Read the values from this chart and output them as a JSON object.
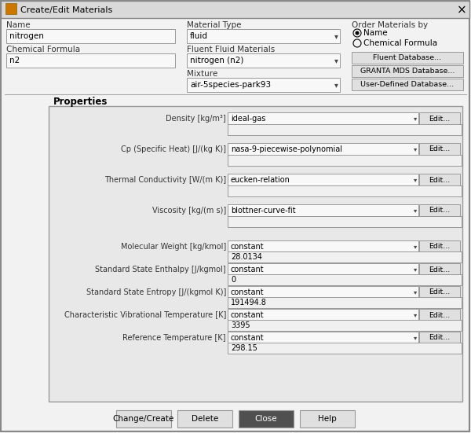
{
  "title": "Create/Edit Materials",
  "bg_color": "#f2f2f2",
  "title_bar_color": "#d9d9d9",
  "field_bg": "#f8f8f8",
  "field_bg2": "#eeeeee",
  "prop_box_bg": "#e8e8e8",
  "btn_bg": "#e0e0e0",
  "dark_btn_bg": "#505050",
  "border_color": "#999999",
  "text_color": "#000000",
  "label_color": "#222222",
  "properties": [
    {
      "label": "Density [kg/m³]",
      "dropdown": "ideal-gas",
      "value_content": ""
    },
    {
      "label": "Cp (Specific Heat) [J/(kg K)]",
      "dropdown": "nasa-9-piecewise-polynomial",
      "value_content": ""
    },
    {
      "label": "Thermal Conductivity [W/(m K)]",
      "dropdown": "eucken-relation",
      "value_content": ""
    },
    {
      "label": "Viscosity [kg/(m s)]",
      "dropdown": "blottner-curve-fit",
      "value_content": ""
    },
    {
      "label": "Molecular Weight [kg/kmol]",
      "dropdown": "constant",
      "value_content": "28.0134"
    },
    {
      "label": "Standard State Enthalpy [J/kgmol]",
      "dropdown": "constant",
      "value_content": "0"
    },
    {
      "label": "Standard State Entropy [J/(kgmol K)]",
      "dropdown": "constant",
      "value_content": "191494.8"
    },
    {
      "label": "Characteristic Vibrational Temperature [K]",
      "dropdown": "constant",
      "value_content": "3395"
    },
    {
      "label": "Reference Temperature [K]",
      "dropdown": "constant",
      "value_content": "298.15"
    }
  ],
  "bottom_buttons": [
    {
      "label": "Change/Create",
      "dark": false
    },
    {
      "label": "Delete",
      "dark": false
    },
    {
      "label": "Close",
      "dark": true
    },
    {
      "label": "Help",
      "dark": false
    }
  ],
  "db_buttons": [
    "Fluent Database...",
    "GRANTA MDS Database...",
    "User-Defined Database..."
  ]
}
